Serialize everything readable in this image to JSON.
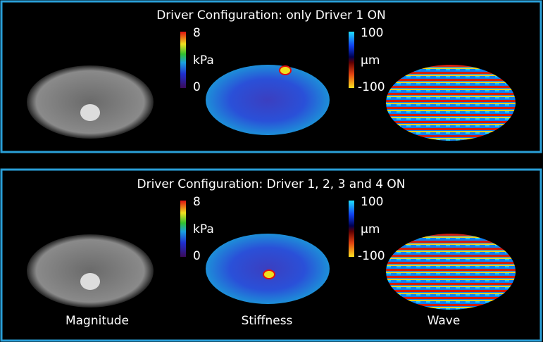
{
  "panels": [
    {
      "title": "Driver Configuration: only Driver 1 ON",
      "stiffness_scale": {
        "max": "8",
        "unit": "kPa",
        "min": "0"
      },
      "wave_scale": {
        "max": "100",
        "unit": "µm",
        "min": "-100"
      }
    },
    {
      "title": "Driver Configuration: Driver 1, 2, 3 and 4 ON",
      "stiffness_scale": {
        "max": "8",
        "unit": "kPa",
        "min": "0"
      },
      "wave_scale": {
        "max": "100",
        "unit": "µm",
        "min": "-100"
      }
    }
  ],
  "column_labels": [
    "Magnitude",
    "Stiffness",
    "Wave"
  ]
}
